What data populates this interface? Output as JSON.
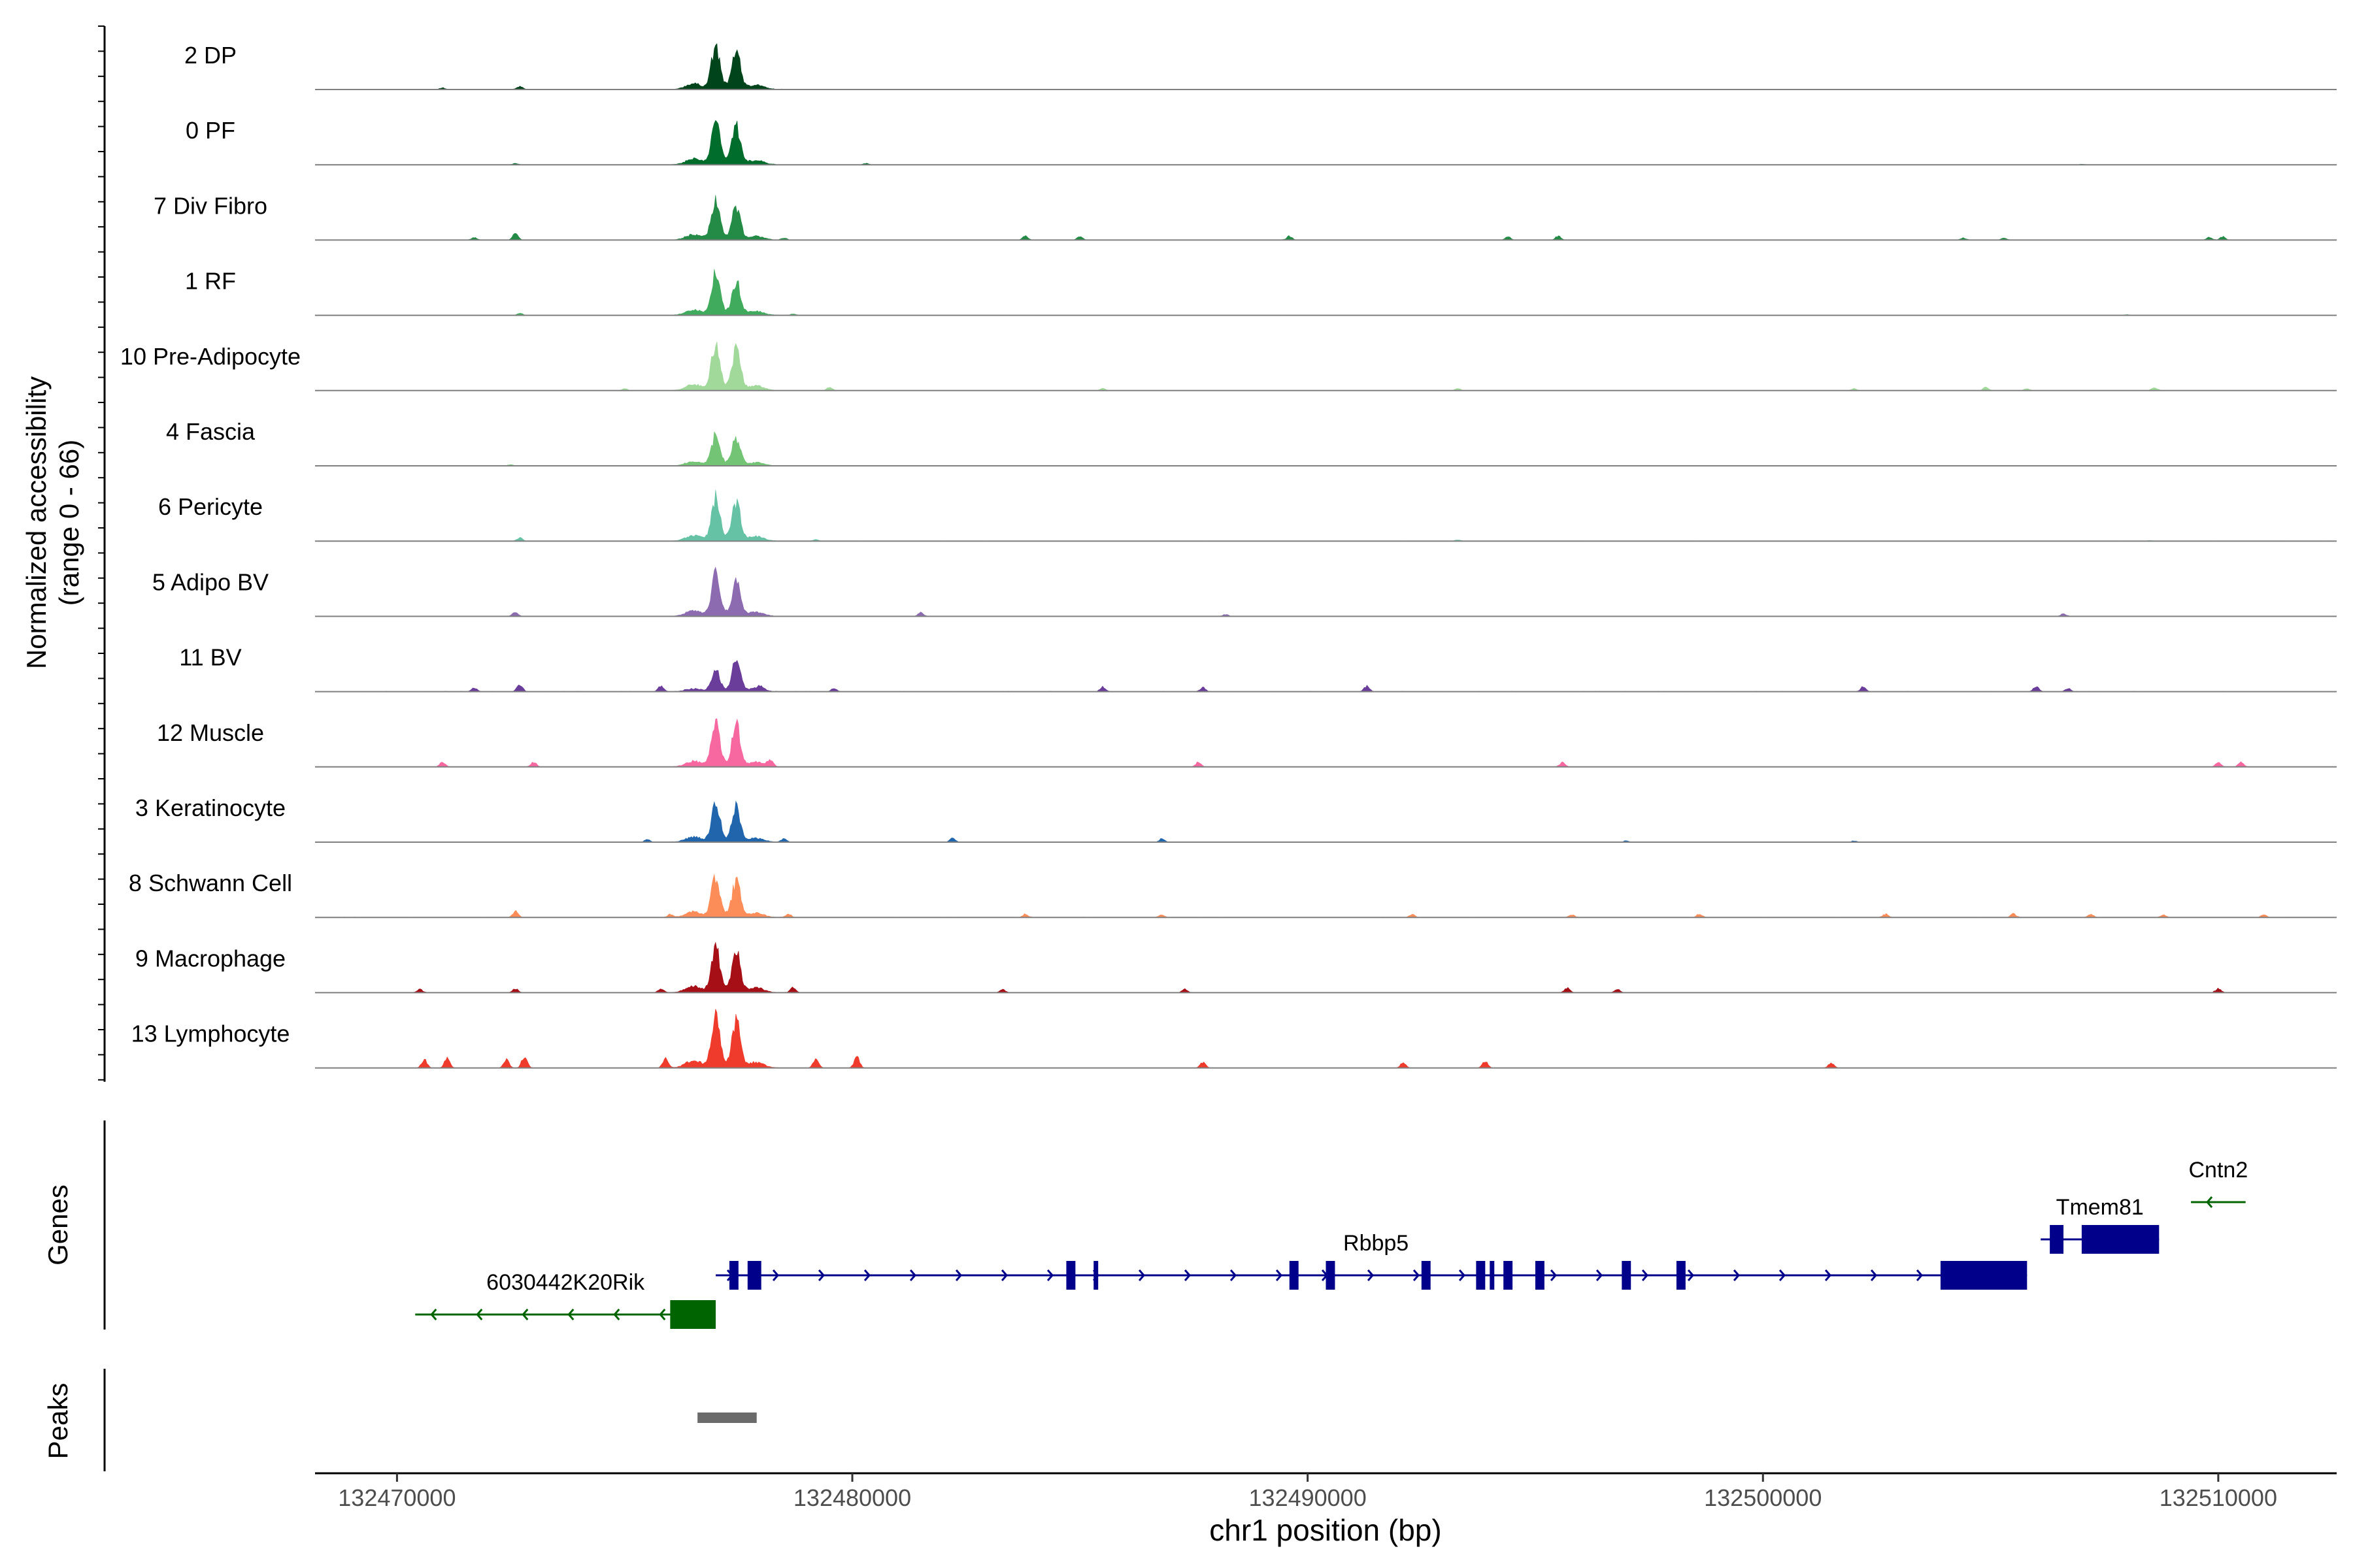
{
  "chart_data": {
    "type": "area",
    "y_axis_label_line1": "Normalized accessibility",
    "y_axis_label_line2": "(range 0 - 66)",
    "y_range": [
      0,
      66
    ],
    "x_axis_label": "chr1 position (bp)",
    "x_range": [
      132468200,
      132512600
    ],
    "x_ticks": [
      {
        "value": 132470000,
        "label": "132470000"
      },
      {
        "value": 132480000,
        "label": "132480000"
      },
      {
        "value": 132490000,
        "label": "132490000"
      },
      {
        "value": 132500000,
        "label": "132500000"
      },
      {
        "value": 132510000,
        "label": "132510000"
      }
    ],
    "tracks": [
      {
        "name": "2 DP",
        "color": "#00441b",
        "main": [
          62,
          56
        ],
        "noise": 0.6,
        "extra": [
          [
            132472700,
            5
          ],
          [
            132471000,
            2
          ]
        ]
      },
      {
        "name": "0 PF",
        "color": "#006d2c",
        "main": [
          62,
          55
        ],
        "noise": 0.3,
        "extra": [
          [
            132472600,
            2
          ],
          [
            132480300,
            2
          ],
          [
            132507000,
            1
          ]
        ]
      },
      {
        "name": "7 Div Fibro",
        "color": "#238b45",
        "main": [
          58,
          44
        ],
        "noise": 0.4,
        "extra": [
          [
            132472600,
            9
          ],
          [
            132471700,
            4
          ],
          [
            132478500,
            3
          ],
          [
            132483800,
            6
          ],
          [
            132485000,
            5
          ],
          [
            132489600,
            6
          ],
          [
            132494400,
            5
          ],
          [
            132495500,
            6
          ],
          [
            132504400,
            3
          ],
          [
            132505300,
            3
          ],
          [
            132509800,
            4
          ],
          [
            132510100,
            5
          ]
        ]
      },
      {
        "name": "1 RF",
        "color": "#41ab5d",
        "main": [
          60,
          48
        ],
        "noise": 0.3,
        "extra": [
          [
            132472700,
            3
          ],
          [
            132478700,
            2
          ],
          [
            132508000,
            1
          ]
        ]
      },
      {
        "name": "10 Pre-Adipocyte",
        "color": "#a1d99b",
        "main": [
          66,
          60
        ],
        "noise": 0.3,
        "extra": [
          [
            132479500,
            5
          ],
          [
            132475000,
            3
          ],
          [
            132485500,
            3
          ],
          [
            132493300,
            3
          ],
          [
            132502000,
            3
          ],
          [
            132504900,
            5
          ],
          [
            132505800,
            3
          ],
          [
            132508600,
            5
          ]
        ]
      },
      {
        "name": "4 Fascia",
        "color": "#74c476",
        "main": [
          44,
          40
        ],
        "noise": 0.3,
        "extra": [
          [
            132472500,
            2
          ]
        ]
      },
      {
        "name": "6 Pericyte",
        "color": "#66c2a4",
        "main": [
          60,
          55
        ],
        "noise": 0.4,
        "extra": [
          [
            132472700,
            5
          ],
          [
            132479200,
            2
          ],
          [
            132493300,
            2
          ],
          [
            132508500,
            1
          ]
        ]
      },
      {
        "name": "5 Adipo BV",
        "color": "#8c6bb1",
        "main": [
          62,
          48
        ],
        "noise": 0.3,
        "extra": [
          [
            132472600,
            7
          ],
          [
            132481500,
            6
          ],
          [
            132488200,
            3
          ],
          [
            132506600,
            4
          ]
        ]
      },
      {
        "name": "11 BV",
        "color": "#6a3d9a",
        "main": [
          30,
          44
        ],
        "noise": 0.5,
        "extra": [
          [
            132472700,
            11
          ],
          [
            132471700,
            6
          ],
          [
            132475800,
            9
          ],
          [
            132478000,
            5
          ],
          [
            132479600,
            5
          ],
          [
            132485500,
            7
          ],
          [
            132487700,
            6
          ],
          [
            132491300,
            8
          ],
          [
            132502200,
            7
          ],
          [
            132506000,
            8
          ],
          [
            132506700,
            5
          ]
        ]
      },
      {
        "name": "12 Muscle",
        "color": "#f768a1",
        "main": [
          60,
          58
        ],
        "noise": 0.3,
        "extra": [
          [
            132471000,
            7
          ],
          [
            132473000,
            7
          ],
          [
            132478200,
            10
          ],
          [
            132487600,
            7
          ],
          [
            132495600,
            7
          ],
          [
            132510000,
            7
          ],
          [
            132510500,
            7
          ]
        ]
      },
      {
        "name": "3 Keratinocyte",
        "color": "#2166ac",
        "main": [
          55,
          48
        ],
        "noise": 0.5,
        "extra": [
          [
            132475500,
            4
          ],
          [
            132478500,
            5
          ],
          [
            132482200,
            7
          ],
          [
            132486800,
            5
          ],
          [
            132502000,
            2
          ],
          [
            132497000,
            2
          ]
        ]
      },
      {
        "name": "8 Schwann Cell",
        "color": "#fc8d59",
        "main": [
          58,
          50
        ],
        "noise": 0.5,
        "extra": [
          [
            132472600,
            9
          ],
          [
            132476000,
            4
          ],
          [
            132478600,
            5
          ],
          [
            132483800,
            5
          ],
          [
            132486800,
            4
          ],
          [
            132492300,
            4
          ],
          [
            132495800,
            4
          ],
          [
            132498600,
            5
          ],
          [
            132502700,
            5
          ],
          [
            132505500,
            5
          ],
          [
            132507200,
            5
          ],
          [
            132508800,
            4
          ],
          [
            132511000,
            4
          ]
        ]
      },
      {
        "name": "9 Macrophage",
        "color": "#a50f15",
        "main": [
          66,
          56
        ],
        "noise": 0.5,
        "extra": [
          [
            132470500,
            5
          ],
          [
            132472600,
            6
          ],
          [
            132475800,
            6
          ],
          [
            132478700,
            8
          ],
          [
            132483300,
            5
          ],
          [
            132487300,
            5
          ],
          [
            132495700,
            7
          ],
          [
            132496800,
            5
          ],
          [
            132510000,
            6
          ]
        ]
      },
      {
        "name": "13 Lymphocyte",
        "color": "#ef3b2c",
        "main": [
          80,
          66
        ],
        "noise": 0.2,
        "extra": [
          [
            132470600,
            12
          ],
          [
            132471100,
            14
          ],
          [
            132472400,
            12
          ],
          [
            132472800,
            18
          ],
          [
            132475900,
            14
          ],
          [
            132479200,
            14
          ],
          [
            132480100,
            16
          ],
          [
            132487700,
            9
          ],
          [
            132492100,
            8
          ],
          [
            132493900,
            10
          ],
          [
            132501500,
            8
          ]
        ]
      }
    ],
    "genes_label": "Genes",
    "genes": [
      {
        "name": "6030442K20Rik",
        "color": "#006400",
        "strand": "-",
        "start": 132470400,
        "end": 132477000,
        "exons": [
          [
            132476000,
            132477000
          ]
        ],
        "label_x": 132473700,
        "row": 3
      },
      {
        "name": "Rbbp5",
        "color": "#00008b",
        "strand": "+",
        "start": 132477000,
        "end": 132505800,
        "exons": [
          [
            132477300,
            132477500
          ],
          [
            132477700,
            132478000
          ],
          [
            132484700,
            132484900
          ],
          [
            132485300,
            132485400
          ],
          [
            132489600,
            132489800
          ],
          [
            132490400,
            132490600
          ],
          [
            132492500,
            132492700
          ],
          [
            132493700,
            132493900
          ],
          [
            132494000,
            132494100
          ],
          [
            132494300,
            132494500
          ],
          [
            132495000,
            132495200
          ],
          [
            132496900,
            132497100
          ],
          [
            132498100,
            132498300
          ],
          [
            132503900,
            132505800
          ]
        ],
        "label_x": 132491500,
        "row": 2
      },
      {
        "name": "Tmem81",
        "color": "#00008b",
        "strand": "+",
        "start": 132506100,
        "end": 132508700,
        "exons": [
          [
            132506300,
            132506600
          ],
          [
            132507000,
            132508700
          ]
        ],
        "label_x": 132507400,
        "row": 1
      },
      {
        "name": "Cntn2",
        "color": "#006400",
        "strand": "-",
        "start": 132509400,
        "end": 132510600,
        "exons": [],
        "label_x": 132510000,
        "row": 0
      }
    ],
    "peaks_label": "Peaks",
    "peaks": [
      [
        132476600,
        132477900
      ]
    ],
    "peak_color": "#6b6b6b"
  }
}
